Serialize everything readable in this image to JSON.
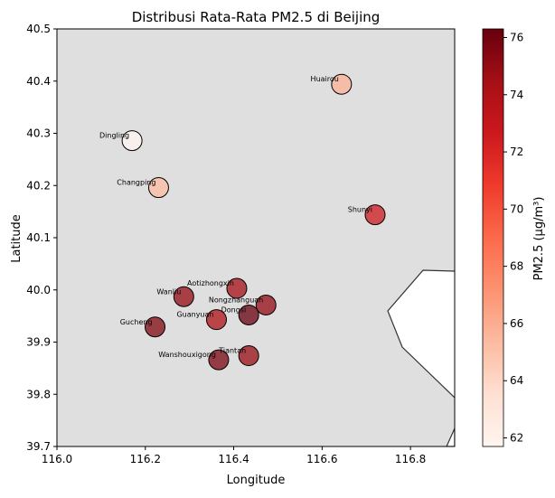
{
  "chart_data": {
    "type": "scatter",
    "title": "Distribusi Rata-Rata PM2.5 di Beijing",
    "xlabel": "Longitude",
    "ylabel": "Latitude",
    "xlim": [
      116.0,
      116.9
    ],
    "ylim": [
      39.7,
      40.5
    ],
    "x_ticks": [
      "116.0",
      "116.2",
      "116.4",
      "116.6",
      "116.8"
    ],
    "y_ticks": [
      "39.7",
      "39.8",
      "39.9",
      "40.0",
      "40.1",
      "40.2",
      "40.3",
      "40.4",
      "40.5"
    ],
    "grid": false,
    "background_color": "#dfdfdf",
    "colormap": "Reds",
    "colorbar": {
      "label": "PM2.5 (µg/m³)",
      "range": [
        61.7,
        76.3
      ],
      "ticks": [
        "62",
        "64",
        "66",
        "68",
        "70",
        "72",
        "74",
        "76"
      ]
    },
    "points": [
      {
        "name": "Aotizhongxin",
        "lon": 116.407,
        "lat": 40.003,
        "pm25": 74.5
      },
      {
        "name": "Changping",
        "lon": 116.23,
        "lat": 40.196,
        "pm25": 65.3
      },
      {
        "name": "Dingling",
        "lon": 116.17,
        "lat": 40.286,
        "pm25": 61.7
      },
      {
        "name": "Dongsi",
        "lon": 116.434,
        "lat": 39.952,
        "pm25": 76.3
      },
      {
        "name": "Guanyuan",
        "lon": 116.361,
        "lat": 39.943,
        "pm25": 74.1
      },
      {
        "name": "Gucheng",
        "lon": 116.222,
        "lat": 39.929,
        "pm25": 75.5
      },
      {
        "name": "Huairou",
        "lon": 116.644,
        "lat": 40.394,
        "pm25": 65.8
      },
      {
        "name": "Nongzhanguan",
        "lon": 116.473,
        "lat": 39.971,
        "pm25": 75.0
      },
      {
        "name": "Shunyi",
        "lon": 116.72,
        "lat": 40.144,
        "pm25": 72.6
      },
      {
        "name": "Tiantan",
        "lon": 116.434,
        "lat": 39.874,
        "pm25": 74.9
      },
      {
        "name": "Wanliu",
        "lon": 116.287,
        "lat": 39.987,
        "pm25": 75.0
      },
      {
        "name": "Wanshouxigong",
        "lon": 116.366,
        "lat": 39.866,
        "pm25": 75.7
      }
    ]
  }
}
